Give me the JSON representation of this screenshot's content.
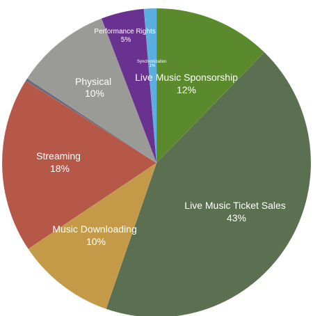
{
  "chart_data": {
    "type": "pie",
    "start_angle_deg": 0,
    "direction": "clockwise",
    "slices": [
      {
        "label": "Live Music Sponsorship",
        "value_text": "12%",
        "value": 12.3,
        "color": "#5a8a2c"
      },
      {
        "label": "Live Music Ticket Sales",
        "value_text": "43%",
        "value": 43.0,
        "color": "#5b7050"
      },
      {
        "label": "Music Downloading",
        "value_text": "10%",
        "value": 10.3,
        "color": "#c49a48"
      },
      {
        "label": "Streaming",
        "value_text": "18%",
        "value": 18.3,
        "color": "#b55848"
      },
      {
        "label": "",
        "value_text": "",
        "value": 0.3,
        "color": "#6a6a7a"
      },
      {
        "label": "Physical",
        "value_text": "10%",
        "value": 10.0,
        "color": "#9a9a96"
      },
      {
        "label": "Performance Rights",
        "value_text": "5%",
        "value": 4.5,
        "color": "#6a3290"
      },
      {
        "label": "Synchronization",
        "value_text": "1%",
        "value": 1.3,
        "color": "#5aaee0"
      }
    ]
  }
}
